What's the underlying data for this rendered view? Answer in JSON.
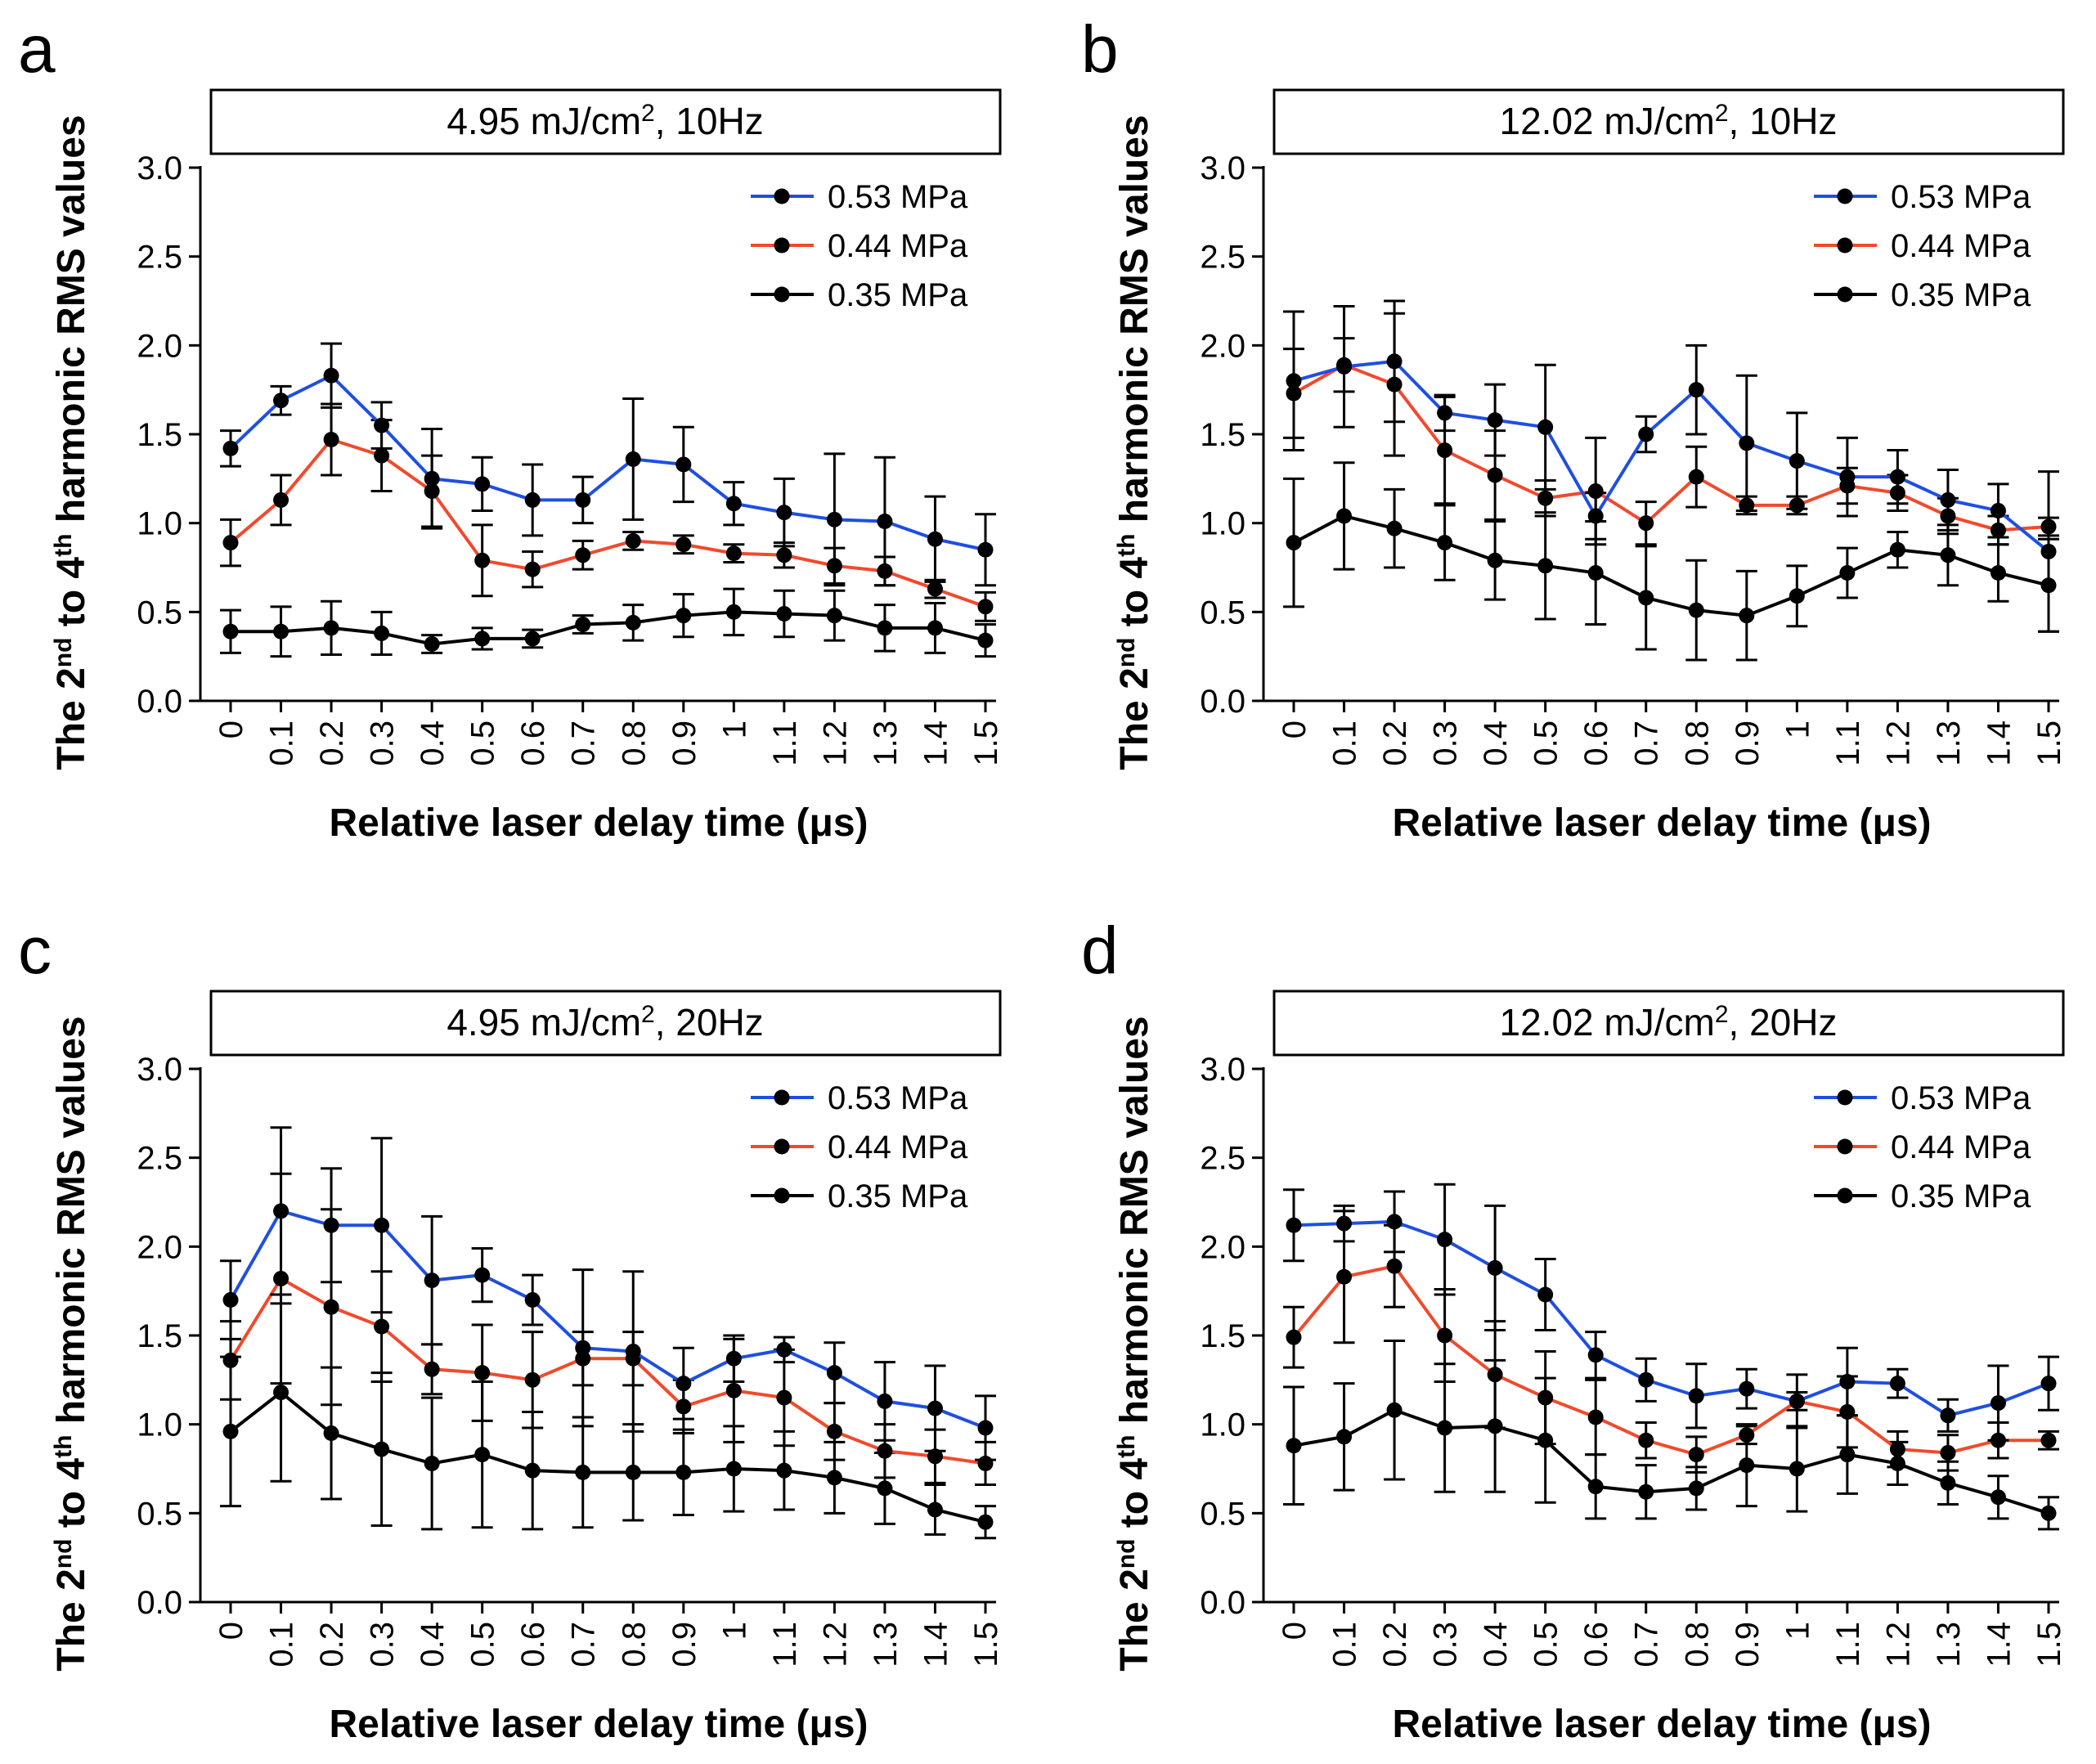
{
  "figure": {
    "description_labels": [
      "a",
      "b",
      "c",
      "d"
    ]
  },
  "chart_data": [
    {
      "type": "line",
      "panel_label": "a",
      "title": {
        "main": "4.95 mJ/cm",
        "sup": "2",
        "tail": ", 10Hz"
      },
      "xlabel": "Relative laser delay time (μs)",
      "ylabel": {
        "p1": "The 2",
        "s1": "nd",
        "p2": " to 4",
        "s2": "th",
        "p3": " harmonic RMS values"
      },
      "ylim": [
        0,
        3.0
      ],
      "yticks": [
        "0.0",
        "0.5",
        "1.0",
        "1.5",
        "2.0",
        "2.5",
        "3.0"
      ],
      "categories": [
        "0",
        "0.1",
        "0.2",
        "0.3",
        "0.4",
        "0.5",
        "0.6",
        "0.7",
        "0.8",
        "0.9",
        "1",
        "1.1",
        "1.2",
        "1.3",
        "1.4",
        "1.5"
      ],
      "legend_position": "top-right",
      "series": [
        {
          "name": "0.53 MPa",
          "color": "#1f4fe0",
          "values": [
            1.42,
            1.69,
            1.83,
            1.55,
            1.25,
            1.22,
            1.13,
            1.13,
            1.36,
            1.33,
            1.11,
            1.06,
            1.02,
            1.01,
            0.91,
            0.85
          ],
          "errors": [
            0.1,
            0.08,
            0.18,
            0.13,
            0.28,
            0.15,
            0.2,
            0.13,
            0.34,
            0.21,
            0.12,
            0.19,
            0.37,
            0.36,
            0.24,
            0.2
          ]
        },
        {
          "name": "0.44 MPa",
          "color": "#f04a2c",
          "values": [
            0.89,
            1.13,
            1.47,
            1.38,
            1.18,
            0.79,
            0.74,
            0.82,
            0.9,
            0.88,
            0.83,
            0.82,
            0.76,
            0.73,
            0.63,
            0.53
          ],
          "errors": [
            0.13,
            0.14,
            0.2,
            0.2,
            0.2,
            0.2,
            0.1,
            0.08,
            0.05,
            0.05,
            0.05,
            0.07,
            0.1,
            0.08,
            0.05,
            0.08
          ]
        },
        {
          "name": "0.35 MPa",
          "color": "#000000",
          "values": [
            0.39,
            0.39,
            0.41,
            0.38,
            0.32,
            0.35,
            0.35,
            0.43,
            0.44,
            0.48,
            0.5,
            0.49,
            0.48,
            0.41,
            0.41,
            0.34
          ],
          "errors": [
            0.12,
            0.14,
            0.15,
            0.12,
            0.05,
            0.06,
            0.05,
            0.05,
            0.1,
            0.12,
            0.13,
            0.13,
            0.14,
            0.13,
            0.14,
            0.09
          ]
        }
      ]
    },
    {
      "type": "line",
      "panel_label": "b",
      "title": {
        "main": "12.02 mJ/cm",
        "sup": "2",
        "tail": ", 10Hz"
      },
      "xlabel": "Relative laser delay time (μs)",
      "ylabel": {
        "p1": "The 2",
        "s1": "nd",
        "p2": " to 4",
        "s2": "th",
        "p3": " harmonic RMS values"
      },
      "ylim": [
        0,
        3.0
      ],
      "yticks": [
        "0.0",
        "0.5",
        "1.0",
        "1.5",
        "2.0",
        "2.5",
        "3.0"
      ],
      "categories": [
        "0",
        "0.1",
        "0.2",
        "0.3",
        "0.4",
        "0.5",
        "0.6",
        "0.7",
        "0.8",
        "0.9",
        "1",
        "1.1",
        "1.2",
        "1.3",
        "1.4",
        "1.5"
      ],
      "legend_position": "top-right",
      "series": [
        {
          "name": "0.53 MPa",
          "color": "#1f4fe0",
          "values": [
            1.8,
            1.88,
            1.91,
            1.62,
            1.58,
            1.54,
            1.04,
            1.5,
            1.75,
            1.45,
            1.35,
            1.26,
            1.26,
            1.13,
            1.07,
            0.84
          ],
          "errors": [
            0.39,
            0.34,
            0.34,
            0.1,
            0.2,
            0.35,
            0.13,
            0.1,
            0.25,
            0.38,
            0.27,
            0.22,
            0.15,
            0.17,
            0.15,
            0.45
          ]
        },
        {
          "name": "0.44 MPa",
          "color": "#f04a2c",
          "values": [
            1.73,
            1.89,
            1.78,
            1.41,
            1.27,
            1.14,
            1.18,
            1.0,
            1.26,
            1.1,
            1.1,
            1.21,
            1.17,
            1.04,
            0.96,
            0.98
          ],
          "errors": [
            0.25,
            0.15,
            0.4,
            0.3,
            0.25,
            0.1,
            0.3,
            0.12,
            0.17,
            0.05,
            0.05,
            0.1,
            0.1,
            0.1,
            0.08,
            0.05
          ]
        },
        {
          "name": "0.35 MPa",
          "color": "#000000",
          "values": [
            0.89,
            1.04,
            0.97,
            0.89,
            0.79,
            0.76,
            0.72,
            0.58,
            0.51,
            0.48,
            0.59,
            0.72,
            0.85,
            0.82,
            0.72,
            0.65
          ],
          "errors": [
            0.36,
            0.3,
            0.22,
            0.21,
            0.22,
            0.3,
            0.29,
            0.29,
            0.28,
            0.25,
            0.17,
            0.14,
            0.1,
            0.17,
            0.16,
            0.26
          ]
        }
      ]
    },
    {
      "type": "line",
      "panel_label": "c",
      "title": {
        "main": "4.95 mJ/cm",
        "sup": "2",
        "tail": ", 20Hz"
      },
      "xlabel": "Relative laser delay time (μs)",
      "ylabel": {
        "p1": "The 2",
        "s1": "nd",
        "p2": " to 4",
        "s2": "th",
        "p3": " harmonic RMS values"
      },
      "ylim": [
        0,
        3.0
      ],
      "yticks": [
        "0.0",
        "0.5",
        "1.0",
        "1.5",
        "2.0",
        "2.5",
        "3.0"
      ],
      "categories": [
        "0",
        "0.1",
        "0.2",
        "0.3",
        "0.4",
        "0.5",
        "0.6",
        "0.7",
        "0.8",
        "0.9",
        "1",
        "1.1",
        "1.2",
        "1.3",
        "1.4",
        "1.5"
      ],
      "legend_position": "top-right",
      "series": [
        {
          "name": "0.53 MPa",
          "color": "#1f4fe0",
          "values": [
            1.7,
            2.2,
            2.12,
            2.12,
            1.81,
            1.84,
            1.7,
            1.43,
            1.41,
            1.23,
            1.37,
            1.42,
            1.29,
            1.13,
            1.09,
            0.98
          ],
          "errors": [
            0.22,
            0.47,
            0.32,
            0.49,
            0.36,
            0.15,
            0.14,
            0.44,
            0.45,
            0.2,
            0.13,
            0.07,
            0.17,
            0.22,
            0.24,
            0.18
          ]
        },
        {
          "name": "0.44 MPa",
          "color": "#f04a2c",
          "values": [
            1.36,
            1.82,
            1.66,
            1.55,
            1.31,
            1.29,
            1.25,
            1.37,
            1.37,
            1.1,
            1.19,
            1.15,
            0.96,
            0.85,
            0.82,
            0.78
          ],
          "errors": [
            0.22,
            0.59,
            0.55,
            0.31,
            0.14,
            0.27,
            0.27,
            0.15,
            0.15,
            0.15,
            0.29,
            0.27,
            0.16,
            0.15,
            0.15,
            0.12
          ]
        },
        {
          "name": "0.35 MPa",
          "color": "#000000",
          "values": [
            0.96,
            1.18,
            0.95,
            0.86,
            0.78,
            0.83,
            0.74,
            0.73,
            0.73,
            0.73,
            0.75,
            0.74,
            0.7,
            0.64,
            0.52,
            0.45
          ],
          "errors": [
            0.42,
            0.5,
            0.37,
            0.43,
            0.37,
            0.41,
            0.33,
            0.31,
            0.27,
            0.24,
            0.24,
            0.22,
            0.2,
            0.2,
            0.14,
            0.09
          ]
        }
      ]
    },
    {
      "type": "line",
      "panel_label": "d",
      "title": {
        "main": "12.02 mJ/cm",
        "sup": "2",
        "tail": ", 20Hz"
      },
      "xlabel": "Relative laser delay time (μs)",
      "ylabel": {
        "p1": "The 2",
        "s1": "nd",
        "p2": " to 4",
        "s2": "th",
        "p3": " harmonic RMS values"
      },
      "ylim": [
        0,
        3.0
      ],
      "yticks": [
        "0.0",
        "0.5",
        "1.0",
        "1.5",
        "2.0",
        "2.5",
        "3.0"
      ],
      "categories": [
        "0",
        "0.1",
        "0.2",
        "0.3",
        "0.4",
        "0.5",
        "0.6",
        "0.7",
        "0.8",
        "0.9",
        "1",
        "1.1",
        "1.2",
        "1.3",
        "1.4",
        "1.5"
      ],
      "legend_position": "top-right",
      "series": [
        {
          "name": "0.53 MPa",
          "color": "#1f4fe0",
          "values": [
            2.12,
            2.13,
            2.14,
            2.04,
            1.88,
            1.73,
            1.39,
            1.25,
            1.16,
            1.2,
            1.13,
            1.24,
            1.23,
            1.05,
            1.12,
            1.23
          ],
          "errors": [
            0.2,
            0.1,
            0.17,
            0.31,
            0.35,
            0.2,
            0.13,
            0.12,
            0.18,
            0.11,
            0.15,
            0.19,
            0.08,
            0.09,
            0.21,
            0.15
          ]
        },
        {
          "name": "0.44 MPa",
          "color": "#f04a2c",
          "values": [
            1.49,
            1.83,
            1.89,
            1.5,
            1.28,
            1.15,
            1.04,
            0.91,
            0.83,
            0.94,
            1.13,
            1.07,
            0.86,
            0.84,
            0.91,
            0.91
          ],
          "errors": [
            0.17,
            0.37,
            0.23,
            0.26,
            0.3,
            0.26,
            0.21,
            0.1,
            0.1,
            0.05,
            0.05,
            0.2,
            0.1,
            0.1,
            0.1,
            0.05
          ]
        },
        {
          "name": "0.35 MPa",
          "color": "#000000",
          "values": [
            0.88,
            0.93,
            1.08,
            0.98,
            0.99,
            0.91,
            0.65,
            0.62,
            0.64,
            0.77,
            0.75,
            0.83,
            0.78,
            0.67,
            0.59,
            0.5
          ],
          "errors": [
            0.33,
            0.3,
            0.39,
            0.36,
            0.37,
            0.35,
            0.18,
            0.15,
            0.12,
            0.23,
            0.24,
            0.22,
            0.12,
            0.12,
            0.12,
            0.09
          ]
        }
      ]
    }
  ]
}
